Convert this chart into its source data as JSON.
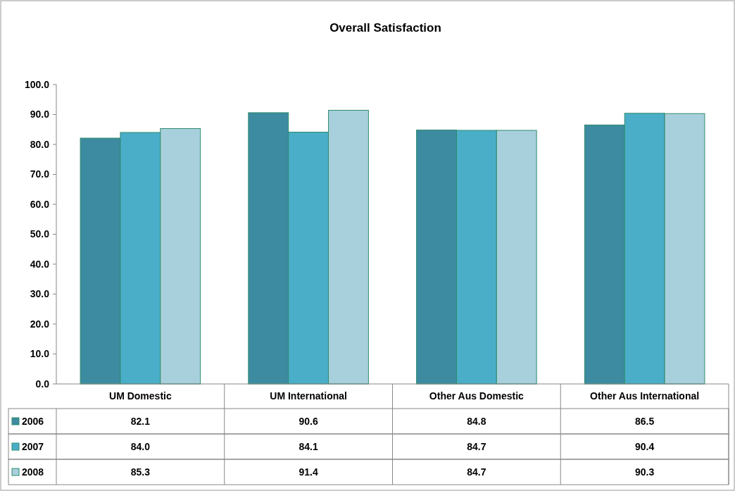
{
  "chart_data": {
    "type": "bar",
    "title": "Overall Satisfaction",
    "categories": [
      "UM Domestic",
      "UM International",
      "Other Aus Domestic",
      "Other Aus International"
    ],
    "series": [
      {
        "name": "2006",
        "color": "#3d8ba0",
        "values": [
          82.1,
          90.6,
          84.8,
          86.5
        ],
        "value_labels": [
          "82.1",
          "90.6",
          "84.8",
          "86.5"
        ]
      },
      {
        "name": "2007",
        "color": "#4aaec8",
        "values": [
          84.0,
          84.1,
          84.7,
          90.4
        ],
        "value_labels": [
          "84.0",
          "84.1",
          "84.7",
          "90.4"
        ]
      },
      {
        "name": "2008",
        "color": "#a8d0dc",
        "values": [
          85.3,
          91.4,
          84.7,
          90.3
        ],
        "value_labels": [
          "85.3",
          "91.4",
          "84.7",
          "90.3"
        ]
      }
    ],
    "ylim": [
      0,
      100
    ],
    "yticks": [
      {
        "value": 0,
        "label": "0.0"
      },
      {
        "value": 10,
        "label": "10.0"
      },
      {
        "value": 20,
        "label": "20.0"
      },
      {
        "value": 30,
        "label": "30.0"
      },
      {
        "value": 40,
        "label": "40.0"
      },
      {
        "value": 50,
        "label": "50.0"
      },
      {
        "value": 60,
        "label": "60.0"
      },
      {
        "value": 70,
        "label": "70.0"
      },
      {
        "value": 80,
        "label": "80.0"
      },
      {
        "value": 90,
        "label": "90.0"
      },
      {
        "value": 100,
        "label": "100.0"
      }
    ],
    "grid": false,
    "legend": "bottom"
  }
}
